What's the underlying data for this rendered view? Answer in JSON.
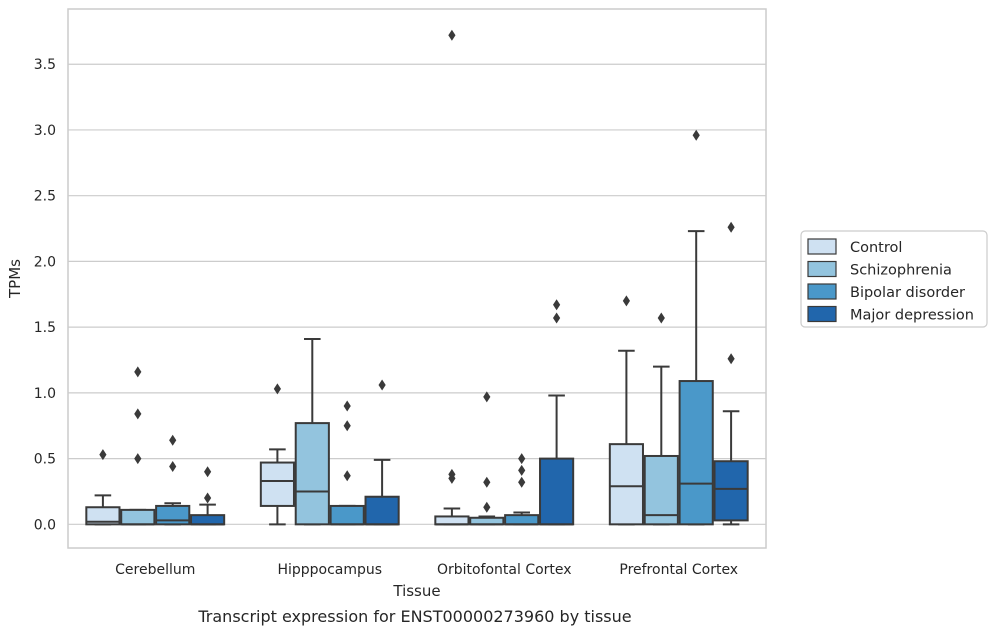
{
  "chart_data": {
    "type": "box",
    "title": "",
    "caption": "Transcript expression for ENST00000273960 by tissue",
    "xlabel": "Tissue",
    "ylabel": "TPMs",
    "ylim": [
      -0.18,
      3.92
    ],
    "yticks": [
      "0.0",
      "0.5",
      "1.0",
      "1.5",
      "2.0",
      "2.5",
      "3.0",
      "3.5"
    ],
    "grid": "horizontal",
    "legend_position": "right",
    "categories": [
      "Cerebellum",
      "Hipppocampus",
      "Orbitofontal Cortex",
      "Prefrontal Cortex"
    ],
    "series": [
      {
        "name": "Control",
        "color": "#cfe1f2",
        "boxes": [
          {
            "whisker_low": 0.0,
            "q1": 0.0,
            "median": 0.02,
            "q3": 0.13,
            "whisker_high": 0.22,
            "outliers": [
              0.53
            ]
          },
          {
            "whisker_low": 0.0,
            "q1": 0.14,
            "median": 0.33,
            "q3": 0.47,
            "whisker_high": 0.57,
            "outliers": [
              1.03
            ]
          },
          {
            "whisker_low": 0.0,
            "q1": 0.0,
            "median": 0.0,
            "q3": 0.06,
            "whisker_high": 0.12,
            "outliers": [
              0.35,
              0.38,
              3.72
            ]
          },
          {
            "whisker_low": 0.0,
            "q1": 0.0,
            "median": 0.29,
            "q3": 0.61,
            "whisker_high": 1.32,
            "outliers": [
              1.7
            ]
          }
        ]
      },
      {
        "name": "Schizophrenia",
        "color": "#93c4de",
        "boxes": [
          {
            "whisker_low": 0.0,
            "q1": 0.0,
            "median": 0.0,
            "q3": 0.11,
            "whisker_high": 0.11,
            "outliers": [
              0.5,
              0.84,
              1.16
            ]
          },
          {
            "whisker_low": 0.0,
            "q1": 0.0,
            "median": 0.25,
            "q3": 0.77,
            "whisker_high": 1.41,
            "outliers": []
          },
          {
            "whisker_low": 0.0,
            "q1": 0.0,
            "median": 0.0,
            "q3": 0.05,
            "whisker_high": 0.06,
            "outliers": [
              0.13,
              0.32,
              0.97
            ]
          },
          {
            "whisker_low": 0.0,
            "q1": 0.0,
            "median": 0.07,
            "q3": 0.52,
            "whisker_high": 1.2,
            "outliers": [
              1.57
            ]
          }
        ]
      },
      {
        "name": "Bipolar disorder",
        "color": "#4a98c9",
        "boxes": [
          {
            "whisker_low": 0.0,
            "q1": 0.0,
            "median": 0.03,
            "q3": 0.14,
            "whisker_high": 0.16,
            "outliers": [
              0.44,
              0.64
            ]
          },
          {
            "whisker_low": 0.0,
            "q1": 0.0,
            "median": 0.0,
            "q3": 0.14,
            "whisker_high": 0.14,
            "outliers": [
              0.37,
              0.75,
              0.9
            ]
          },
          {
            "whisker_low": 0.0,
            "q1": 0.0,
            "median": 0.0,
            "q3": 0.07,
            "whisker_high": 0.09,
            "outliers": [
              0.32,
              0.41,
              0.5
            ]
          },
          {
            "whisker_low": 0.0,
            "q1": 0.0,
            "median": 0.31,
            "q3": 1.09,
            "whisker_high": 2.23,
            "outliers": [
              2.96
            ]
          }
        ]
      },
      {
        "name": "Major depression",
        "color": "#2166ac",
        "boxes": [
          {
            "whisker_low": 0.0,
            "q1": 0.0,
            "median": 0.0,
            "q3": 0.07,
            "whisker_high": 0.15,
            "outliers": [
              0.2,
              0.4
            ]
          },
          {
            "whisker_low": 0.0,
            "q1": 0.0,
            "median": 0.0,
            "q3": 0.21,
            "whisker_high": 0.49,
            "outliers": [
              1.06
            ]
          },
          {
            "whisker_low": 0.0,
            "q1": 0.0,
            "median": 0.0,
            "q3": 0.5,
            "whisker_high": 0.98,
            "outliers": [
              1.57,
              1.67
            ]
          },
          {
            "whisker_low": 0.0,
            "q1": 0.03,
            "median": 0.27,
            "q3": 0.48,
            "whisker_high": 0.86,
            "outliers": [
              1.26,
              2.26
            ]
          }
        ]
      }
    ]
  }
}
